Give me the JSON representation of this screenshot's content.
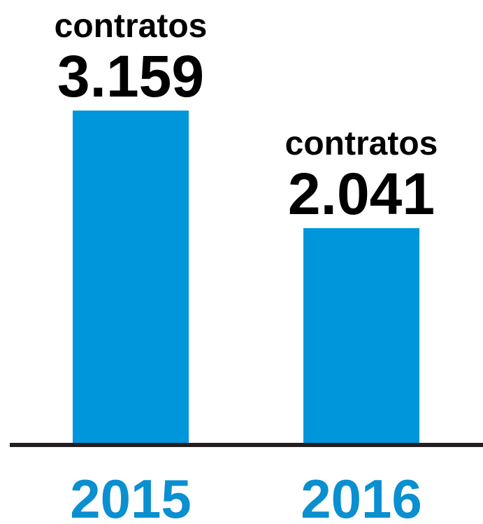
{
  "chart_data": {
    "type": "bar",
    "categories": [
      "2015",
      "2016"
    ],
    "values": [
      3159,
      2041
    ],
    "value_labels": [
      "3.159",
      "2.041"
    ],
    "annotations": [
      "contratos",
      "contratos"
    ],
    "color": "#0096db"
  }
}
